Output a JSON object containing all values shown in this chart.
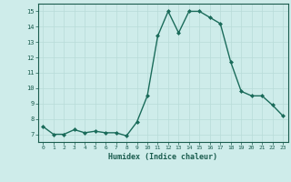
{
  "x": [
    0,
    1,
    2,
    3,
    4,
    5,
    6,
    7,
    8,
    9,
    10,
    11,
    12,
    13,
    14,
    15,
    16,
    17,
    18,
    19,
    20,
    21,
    22,
    23
  ],
  "y": [
    7.5,
    7.0,
    7.0,
    7.3,
    7.1,
    7.2,
    7.1,
    7.1,
    6.9,
    7.8,
    9.5,
    13.4,
    15.0,
    13.6,
    15.0,
    15.0,
    14.6,
    14.2,
    11.7,
    9.8,
    9.5,
    9.5,
    8.9,
    8.2
  ],
  "line_color": "#1a6b5a",
  "marker": "D",
  "marker_size": 2.0,
  "bg_color": "#ceecea",
  "grid_color": "#b8dbd8",
  "xlabel": "Humidex (Indice chaleur)",
  "xlabel_color": "#1a5c4e",
  "tick_color": "#1a5c4e",
  "ylim": [
    6.5,
    15.5
  ],
  "xlim": [
    -0.5,
    23.5
  ],
  "yticks": [
    7,
    8,
    9,
    10,
    11,
    12,
    13,
    14,
    15
  ],
  "xticks": [
    0,
    1,
    2,
    3,
    4,
    5,
    6,
    7,
    8,
    9,
    10,
    11,
    12,
    13,
    14,
    15,
    16,
    17,
    18,
    19,
    20,
    21,
    22,
    23
  ],
  "linewidth": 1.0
}
